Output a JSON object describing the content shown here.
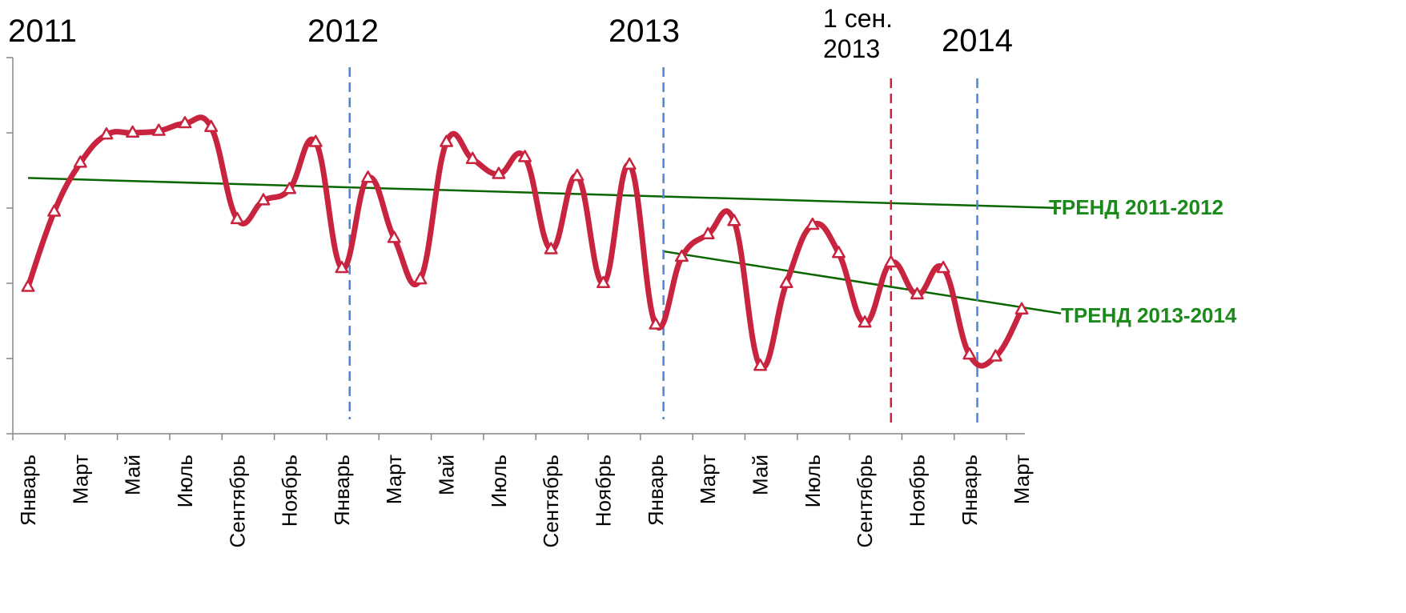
{
  "chart_data": {
    "type": "line",
    "title": "",
    "xlabel": "",
    "ylabel": "",
    "grid": false,
    "legend": "none",
    "y_axis_labels_visible": false,
    "ylim": [
      0,
      10
    ],
    "x_tick_labels": [
      "Январь",
      "Март",
      "Май",
      "Июль",
      "Сентябрь",
      "Ноябрь",
      "Январь",
      "Март",
      "Май",
      "Июль",
      "Сентябрь",
      "Ноябрь",
      "Январь",
      "Март",
      "Май",
      "Июль",
      "Сентябрь",
      "Ноябрь",
      "Январь",
      "Март"
    ],
    "series": [
      {
        "color": "#c8243f",
        "marker": "triangle",
        "values": [
          3.9,
          5.9,
          7.2,
          7.95,
          8.0,
          8.05,
          8.25,
          8.15,
          5.7,
          6.2,
          6.5,
          7.75,
          4.4,
          6.8,
          5.2,
          4.1,
          7.75,
          7.3,
          6.9,
          7.35,
          4.9,
          6.85,
          4.0,
          7.15,
          2.9,
          4.7,
          5.3,
          5.65,
          1.8,
          4.0,
          5.55,
          4.8,
          2.95,
          4.55,
          3.7,
          4.4,
          2.1,
          2.05,
          3.3
        ]
      }
    ],
    "trend_lines": [
      {
        "label": "ТРЕНД 2011-2012",
        "color": "#1a8a1a",
        "line_color": "#0a6600",
        "start_index": 0,
        "start_value": 6.8,
        "end_index": 39.5,
        "end_value": 6.0
      },
      {
        "label": "ТРЕНД 2013-2014",
        "color": "#1a8a1a",
        "line_color": "#0a6600",
        "start_index": 24.3,
        "start_value": 4.85,
        "end_index": 39.5,
        "end_value": 3.2
      }
    ],
    "vertical_markers": [
      {
        "index": 12.3,
        "color": "#4a86d4",
        "year_label": "2012"
      },
      {
        "index": 24.3,
        "color": "#4a86d4",
        "year_label": "2013"
      },
      {
        "index": 33.0,
        "color": "#d01f3c",
        "year_label": "1 сен.\n2013"
      },
      {
        "index": 36.3,
        "color": "#4a86d4",
        "year_label": "2014"
      }
    ],
    "start_year_label": "2011"
  }
}
